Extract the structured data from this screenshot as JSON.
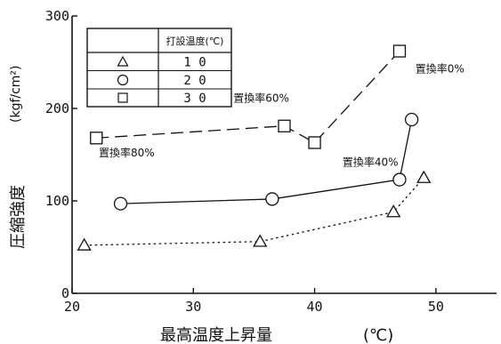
{
  "chart_data": {
    "type": "scatter",
    "xlabel": "最高温度上昇量",
    "xunit": "(℃)",
    "ylabel": "圧縮強度",
    "yunit": "(kgf/cm²)",
    "xlim": [
      20,
      55
    ],
    "ylim": [
      0,
      300
    ],
    "xticks": [
      "20",
      "30",
      "40",
      "50"
    ],
    "yticks": [
      "0",
      "100",
      "200",
      "300"
    ],
    "grid": false,
    "legend": {
      "placement": "top-left",
      "header": "打設温度(℃)",
      "entries": [
        "1 0",
        "2 0",
        "3 0"
      ]
    },
    "series": [
      {
        "marker": "triangle",
        "line": "dotted",
        "x": [
          21,
          35.5,
          46.5,
          49
        ],
        "y": [
          52,
          56,
          88,
          125
        ]
      },
      {
        "marker": "circle",
        "line": "solid",
        "x": [
          24,
          36.5,
          47,
          48
        ],
        "y": [
          97,
          102,
          123,
          188
        ]
      },
      {
        "marker": "square",
        "line": "dashed",
        "x": [
          22,
          37.5,
          40,
          47
        ],
        "y": [
          168,
          181,
          163,
          262
        ]
      }
    ],
    "annotations": [
      {
        "text": "置換率80%",
        "x": 22.2,
        "y": 148
      },
      {
        "text": "置換率60%",
        "x": 33.3,
        "y": 207
      },
      {
        "text": "置換率40%",
        "x": 42.3,
        "y": 138
      },
      {
        "text": "置換率0%",
        "x": 48.3,
        "y": 239
      }
    ]
  }
}
